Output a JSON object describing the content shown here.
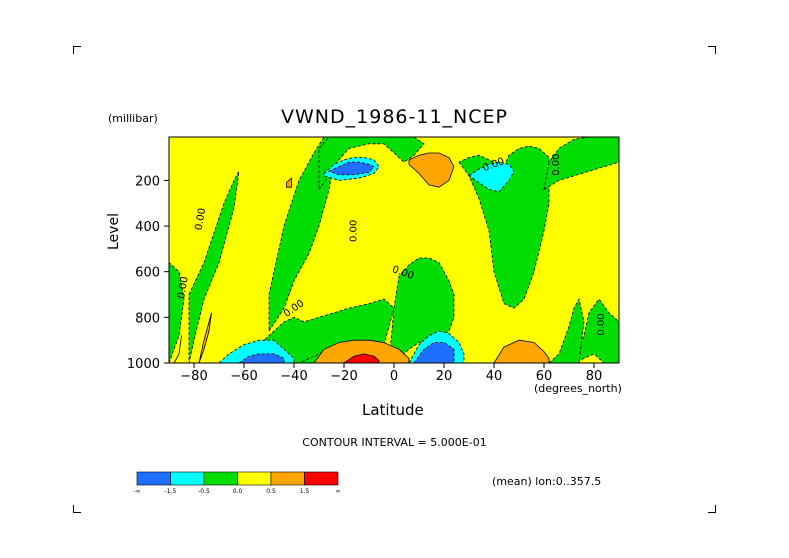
{
  "figure": {
    "title": "VWND_1986-11_NCEP",
    "y_units": "(millibar)",
    "y_label": "Level",
    "x_label": "Latitude",
    "x_units": "(degrees_north)",
    "contour_interval_text": "CONTOUR INTERVAL = 5.000E-01",
    "mean_text": "(mean) lon:0..357.5",
    "contour_label": "0.00"
  },
  "colors": {
    "lt_neg1_5": "#1e6eff",
    "neg1_5_to_neg0_5": "#00ffff",
    "neg0_5_to_0": "#00dd00",
    "0_to_0_5": "#ffff00",
    "0_5_to_1_5": "#ffa500",
    "gt_1_5": "#ff0000"
  },
  "chart_data": {
    "type": "heatmap",
    "title": "VWND_1986-11_NCEP",
    "xlabel": "Latitude",
    "ylabel": "Level",
    "xlim": [
      -90,
      90
    ],
    "ylim": [
      1000,
      10
    ],
    "x_ticks": [
      -80,
      -60,
      -40,
      -20,
      0,
      20,
      40,
      60,
      80
    ],
    "y_ticks": [
      200,
      400,
      600,
      800,
      1000
    ],
    "colorbar": {
      "bounds": [
        "-∞",
        "-1.5",
        "-0.5",
        "0.0",
        "0.5",
        "1.5",
        "∞"
      ],
      "colors": [
        "#1e6eff",
        "#00ffff",
        "#00dd00",
        "#ffff00",
        "#ffa500",
        "#ff0000"
      ]
    },
    "contour_interval": 0.5,
    "regions": [
      {
        "level": "neg",
        "x": [
          -90,
          -86,
          -84,
          -86,
          -90
        ],
        "y": [
          1000,
          880,
          720,
          600,
          560
        ]
      },
      {
        "level": "neg",
        "x": [
          -82,
          -76,
          -72,
          -68,
          -64,
          -62,
          -64,
          -70,
          -76,
          -80,
          -82
        ],
        "y": [
          700,
          560,
          430,
          300,
          200,
          160,
          320,
          560,
          720,
          900,
          1000
        ]
      },
      {
        "level": "neg",
        "x": [
          -80,
          -62,
          -56,
          -50,
          -46,
          -40,
          -36,
          -30,
          -24,
          -22,
          -28,
          -34,
          -40,
          -48,
          -56,
          -62,
          -70,
          -80
        ],
        "y": [
          1000,
          1000,
          960,
          900,
          860,
          880,
          880,
          840,
          800,
          940,
          1000,
          1000,
          1000,
          1000,
          1000,
          1000,
          1000,
          1000
        ]
      },
      {
        "level": "neg",
        "x": [
          -62,
          -56,
          -50,
          -44,
          -40,
          -36,
          -30,
          -24,
          -18,
          -10,
          -4,
          0,
          -4,
          -12,
          -20,
          -26,
          -30,
          -34,
          -38,
          -40,
          -44,
          -50,
          -56,
          -60,
          -62
        ],
        "y": [
          1000,
          940,
          880,
          820,
          800,
          820,
          800,
          780,
          760,
          740,
          720,
          760,
          920,
          940,
          940,
          940,
          960,
          980,
          1000,
          1000,
          1000,
          1000,
          1000,
          1000,
          1000
        ]
      },
      {
        "level": "neg",
        "x": [
          -50,
          -44,
          -40,
          -34,
          -30,
          -26,
          -24,
          -22,
          -24,
          -28,
          -32,
          -38,
          -44,
          -50
        ],
        "y": [
          860,
          760,
          640,
          520,
          400,
          240,
          120,
          60,
          10,
          10,
          80,
          200,
          400,
          700
        ]
      },
      {
        "level": "neg",
        "x": [
          -30,
          -26,
          -22,
          -18,
          -10,
          -4,
          0,
          4,
          8,
          12,
          8,
          0,
          -10,
          -20,
          -26,
          -30
        ],
        "y": [
          240,
          180,
          110,
          60,
          40,
          40,
          80,
          120,
          90,
          40,
          10,
          10,
          10,
          10,
          10,
          60
        ]
      },
      {
        "level": "neg",
        "x": [
          -2,
          0,
          2,
          6,
          10,
          14,
          18,
          20,
          22,
          24,
          24,
          22,
          18,
          14,
          10,
          6,
          2,
          -2
        ],
        "y": [
          1000,
          760,
          620,
          570,
          540,
          540,
          560,
          600,
          640,
          700,
          800,
          860,
          900,
          900,
          910,
          940,
          980,
          1000
        ]
      },
      {
        "level": "neg",
        "x": [
          26,
          30,
          34,
          38,
          40,
          44,
          48,
          52,
          56,
          60,
          62,
          62,
          58,
          54,
          50,
          46,
          44,
          40,
          34,
          30,
          26
        ],
        "y": [
          120,
          180,
          280,
          420,
          600,
          740,
          760,
          720,
          600,
          420,
          300,
          100,
          60,
          50,
          60,
          90,
          140,
          120,
          90,
          100,
          120
        ]
      },
      {
        "level": "neg",
        "x": [
          60,
          66,
          72,
          78,
          84,
          90,
          90,
          84,
          78,
          72,
          66,
          62,
          60
        ],
        "y": [
          240,
          200,
          180,
          160,
          140,
          120,
          10,
          10,
          10,
          20,
          60,
          120,
          240
        ]
      },
      {
        "level": "neg",
        "x": [
          72,
          76,
          78,
          82,
          86,
          90,
          90,
          84,
          80,
          76,
          72
        ],
        "y": [
          1000,
          880,
          780,
          720,
          780,
          820,
          1000,
          1000,
          960,
          980,
          1000
        ]
      },
      {
        "level": "neg",
        "x": [
          62,
          66,
          70,
          72,
          74,
          76,
          74,
          70,
          66,
          62
        ],
        "y": [
          1000,
          960,
          840,
          760,
          720,
          820,
          1000,
          1000,
          1000,
          1000
        ]
      },
      {
        "level": "vneg",
        "x": [
          -28,
          -24,
          -20,
          -16,
          -12,
          -8,
          -6,
          -8,
          -14,
          -22,
          -28
        ],
        "y": [
          170,
          130,
          110,
          100,
          100,
          110,
          140,
          170,
          190,
          200,
          180
        ]
      },
      {
        "level": "dneg",
        "x": [
          -26,
          -22,
          -18,
          -14,
          -10,
          -8,
          -10,
          -16,
          -22,
          -26
        ],
        "y": [
          160,
          140,
          120,
          120,
          130,
          140,
          165,
          175,
          175,
          160
        ]
      },
      {
        "level": "vneg",
        "x": [
          30,
          34,
          38,
          42,
          46,
          48,
          46,
          42,
          38,
          34,
          30
        ],
        "y": [
          180,
          150,
          130,
          120,
          130,
          160,
          200,
          250,
          240,
          210,
          180
        ]
      },
      {
        "level": "vneg",
        "x": [
          -70,
          -66,
          -60,
          -54,
          -48,
          -44,
          -40,
          -40,
          -70
        ],
        "y": [
          1000,
          960,
          920,
          900,
          900,
          940,
          980,
          1000,
          1000
        ]
      },
      {
        "level": "dneg",
        "x": [
          -62,
          -58,
          -54,
          -48,
          -44,
          -44,
          -62
        ],
        "y": [
          1000,
          970,
          960,
          960,
          980,
          1000,
          1000
        ]
      },
      {
        "level": "vneg",
        "x": [
          6,
          10,
          14,
          18,
          22,
          26,
          28,
          28,
          6
        ],
        "y": [
          1000,
          920,
          880,
          860,
          870,
          910,
          960,
          1000,
          1000
        ]
      },
      {
        "level": "dneg",
        "x": [
          8,
          12,
          16,
          20,
          24,
          24,
          8
        ],
        "y": [
          1000,
          940,
          910,
          910,
          940,
          1000,
          1000
        ]
      },
      {
        "level": "pos",
        "x": [
          6,
          10,
          14,
          18,
          22,
          24,
          22,
          18,
          14,
          10,
          6
        ],
        "y": [
          110,
          90,
          80,
          80,
          100,
          140,
          200,
          230,
          220,
          170,
          130
        ]
      },
      {
        "level": "pos",
        "x": [
          -88,
          -86,
          -85,
          -86,
          -88
        ],
        "y": [
          1000,
          960,
          880,
          960,
          1000
        ]
      },
      {
        "level": "pos",
        "x": [
          -78,
          -76,
          -74,
          -73,
          -74,
          -76,
          -78
        ],
        "y": [
          1000,
          900,
          820,
          780,
          860,
          940,
          1000
        ]
      },
      {
        "level": "pos",
        "x": [
          -43,
          -41,
          -41,
          -43
        ],
        "y": [
          210,
          190,
          230,
          230
        ]
      },
      {
        "level": "pos",
        "x": [
          -32,
          -28,
          -22,
          -16,
          -10,
          -4,
          2,
          6,
          6,
          -32
        ],
        "y": [
          1000,
          940,
          910,
          900,
          900,
          910,
          940,
          980,
          1000,
          1000
        ]
      },
      {
        "level": "pos",
        "x": [
          40,
          44,
          50,
          56,
          60,
          62,
          62,
          40
        ],
        "y": [
          1000,
          930,
          900,
          910,
          950,
          980,
          1000,
          1000
        ]
      },
      {
        "level": "vpos",
        "x": [
          -20,
          -16,
          -12,
          -8,
          -6,
          -6,
          -20
        ],
        "y": [
          1000,
          970,
          960,
          970,
          990,
          1000,
          1000
        ]
      }
    ]
  }
}
